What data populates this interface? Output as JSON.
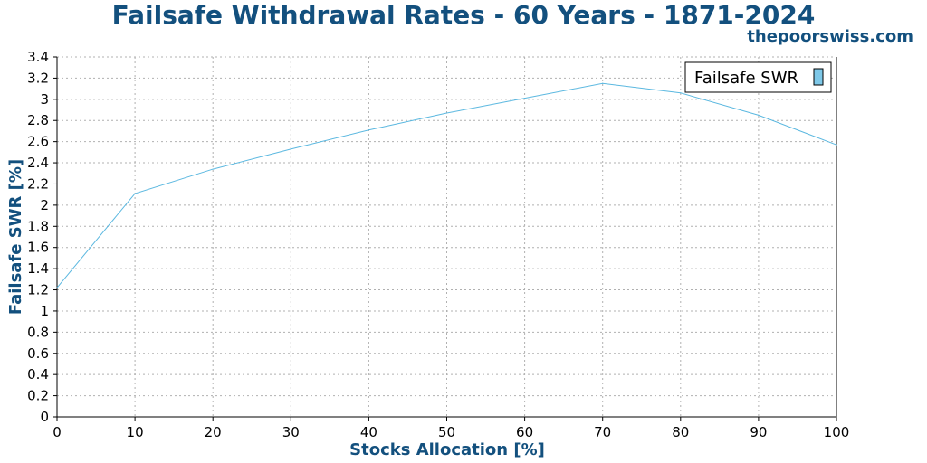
{
  "chart_data": {
    "type": "line",
    "title": "Failsafe Withdrawal Rates - 60 Years - 1871-2024",
    "subtitle": "thepoorswiss.com",
    "xlabel": "Stocks Allocation [%]",
    "ylabel": "Failsafe SWR [%]",
    "x": [
      0,
      10,
      20,
      30,
      40,
      50,
      60,
      70,
      80,
      90,
      100
    ],
    "xlim": [
      0,
      100
    ],
    "ylim": [
      0,
      3.4
    ],
    "x_ticks": [
      "0",
      "10",
      "20",
      "30",
      "40",
      "50",
      "60",
      "70",
      "80",
      "90",
      "100"
    ],
    "y_ticks": [
      "0",
      "0.2",
      "0.4",
      "0.6",
      "0.8",
      "1",
      "1.2",
      "1.4",
      "1.6",
      "1.8",
      "2",
      "2.2",
      "2.4",
      "2.6",
      "2.8",
      "3",
      "3.2",
      "3.4"
    ],
    "grid": true,
    "legend_position": "top-right",
    "series": [
      {
        "name": "Failsafe SWR",
        "values": [
          1.22,
          2.11,
          2.34,
          2.53,
          2.71,
          2.87,
          3.01,
          3.15,
          3.06,
          2.85,
          2.57
        ]
      }
    ],
    "colors": {
      "title": "#13507e",
      "line": "#5bb8e0",
      "legend_swatch": "#7ec8e8",
      "grid": "#b0b0b0",
      "axis": "#000000"
    }
  }
}
